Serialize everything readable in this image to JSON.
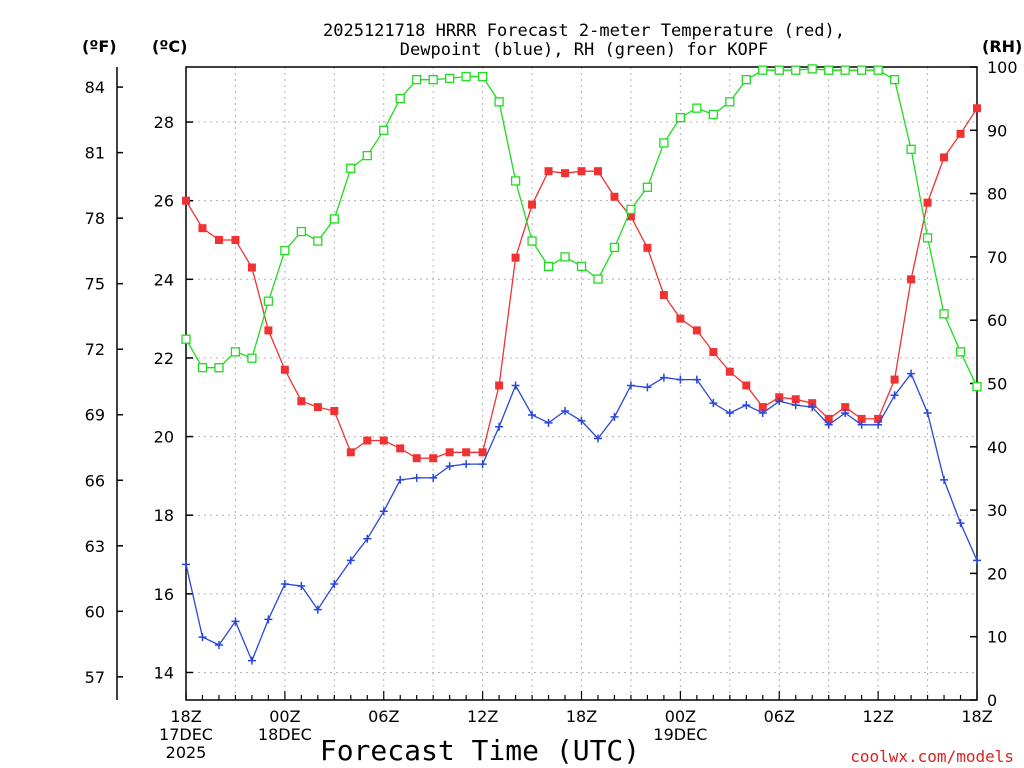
{
  "chart_data": {
    "type": "line",
    "title_line1": "2025121718 HRRR Forecast 2-meter Temperature (red),",
    "title_line2": "Dewpoint (blue), RH (green) for KOPF",
    "xlabel": "Forecast Time (UTC)",
    "watermark": "coolwx.com/models",
    "unit_labels": {
      "fahrenheit": "(ºF)",
      "celsius": "(ºC)",
      "rh": "(RH)"
    },
    "x_ticks": [
      {
        "hour": 0,
        "lines": [
          "18Z",
          "17DEC",
          "2025"
        ]
      },
      {
        "hour": 6,
        "lines": [
          "00Z",
          "18DEC"
        ]
      },
      {
        "hour": 12,
        "lines": [
          "06Z"
        ]
      },
      {
        "hour": 18,
        "lines": [
          "12Z"
        ]
      },
      {
        "hour": 24,
        "lines": [
          "18Z"
        ]
      },
      {
        "hour": 30,
        "lines": [
          "00Z",
          "19DEC"
        ]
      },
      {
        "hour": 36,
        "lines": [
          "06Z"
        ]
      },
      {
        "hour": 42,
        "lines": [
          "12Z"
        ]
      },
      {
        "hour": 48,
        "lines": [
          "18Z"
        ]
      }
    ],
    "xlim": [
      0,
      48
    ],
    "celsius_ylim": [
      13.3,
      29.4
    ],
    "celsius_ticks": [
      14,
      16,
      18,
      20,
      22,
      24,
      26,
      28
    ],
    "fahrenheit_ticks": [
      57,
      60,
      63,
      66,
      69,
      72,
      75,
      78,
      81,
      84
    ],
    "rh_ylim": [
      0,
      100
    ],
    "rh_ticks": [
      0,
      10,
      20,
      30,
      40,
      50,
      60,
      70,
      80,
      90,
      100
    ],
    "series": [
      {
        "name": "Temperature",
        "unit": "C",
        "color": "#f03232",
        "marker": "filled-square",
        "values": [
          26.0,
          25.3,
          25.0,
          25.0,
          24.3,
          22.7,
          21.7,
          20.9,
          20.75,
          20.65,
          19.6,
          19.9,
          19.9,
          19.7,
          19.45,
          19.45,
          19.6,
          19.6,
          19.6,
          21.3,
          24.55,
          25.9,
          26.75,
          26.7,
          26.75,
          26.75,
          26.1,
          25.6,
          24.8,
          23.6,
          23.0,
          22.7,
          22.15,
          21.65,
          21.3,
          20.75,
          21.0,
          20.95,
          20.85,
          20.45,
          20.75,
          20.45,
          20.45,
          21.45,
          24.0,
          25.95,
          27.1,
          27.7,
          28.35
        ]
      },
      {
        "name": "Dewpoint",
        "unit": "C",
        "color": "#2846dc",
        "marker": "plus",
        "values": [
          16.75,
          14.9,
          14.7,
          15.3,
          14.3,
          15.35,
          16.25,
          16.2,
          15.6,
          16.25,
          16.85,
          17.4,
          18.1,
          18.9,
          18.95,
          18.95,
          19.25,
          19.3,
          19.3,
          20.25,
          21.3,
          20.55,
          20.35,
          20.65,
          20.4,
          19.95,
          20.5,
          21.3,
          21.25,
          21.5,
          21.45,
          21.45,
          20.85,
          20.6,
          20.8,
          20.6,
          20.9,
          20.8,
          20.75,
          20.3,
          20.6,
          20.3,
          20.3,
          21.05,
          21.6,
          20.6,
          18.9,
          17.8,
          16.85
        ]
      },
      {
        "name": "RH",
        "unit": "%",
        "color": "#1edc1e",
        "marker": "open-square",
        "values": [
          57,
          52.5,
          52.5,
          55,
          54,
          63,
          71,
          74,
          72.5,
          76,
          84,
          86,
          90,
          95,
          98,
          98,
          98.2,
          98.5,
          98.5,
          94.5,
          82,
          72.5,
          68.5,
          70,
          68.5,
          66.5,
          71.5,
          77.5,
          81,
          88,
          92,
          93.5,
          92.5,
          94.5,
          98,
          99.5,
          99.5,
          99.5,
          99.7,
          99.5,
          99.5,
          99.5,
          99.5,
          98,
          87,
          73,
          61,
          55,
          49.5
        ]
      }
    ]
  }
}
